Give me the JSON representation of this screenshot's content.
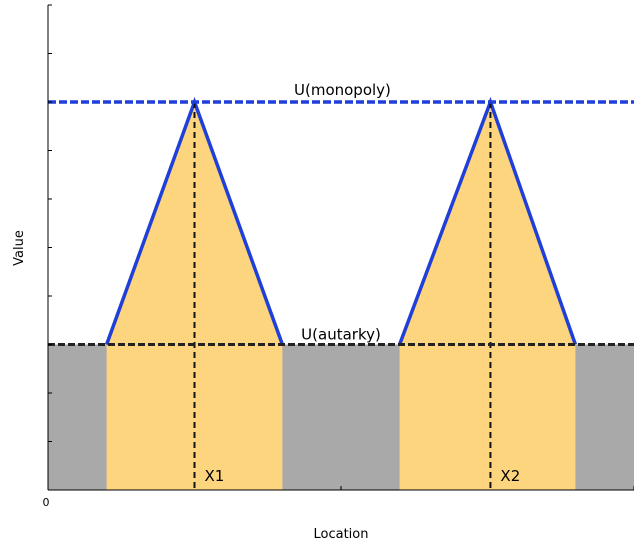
{
  "chart_data": {
    "type": "area",
    "xlabel": "Location",
    "ylabel": "Value",
    "x_tick_labels": [
      "0"
    ],
    "x_range": [
      0,
      10
    ],
    "y_range": [
      0,
      10
    ],
    "levels": [
      {
        "name": "autarky",
        "label": "U(autarky)",
        "y": 3.0,
        "style": "dashed",
        "color": "#222222"
      },
      {
        "name": "monopoly",
        "label": "U(monopoly)",
        "y": 8.0,
        "style": "dashed",
        "color": "#1f3fd9"
      }
    ],
    "firms": [
      {
        "label": "X1",
        "x": 2.5,
        "left": 1.0,
        "right": 4.0,
        "peak": 8.0
      },
      {
        "label": "X2",
        "x": 7.55,
        "left": 6.0,
        "right": 9.0,
        "peak": 8.0
      }
    ],
    "colors": {
      "gray_band": "#a9a9a9",
      "market_band": "#fdd57e",
      "triangle_fill": "#fdd57e",
      "triangle_stroke": "#1f3fd9",
      "axis": "#000000"
    }
  }
}
